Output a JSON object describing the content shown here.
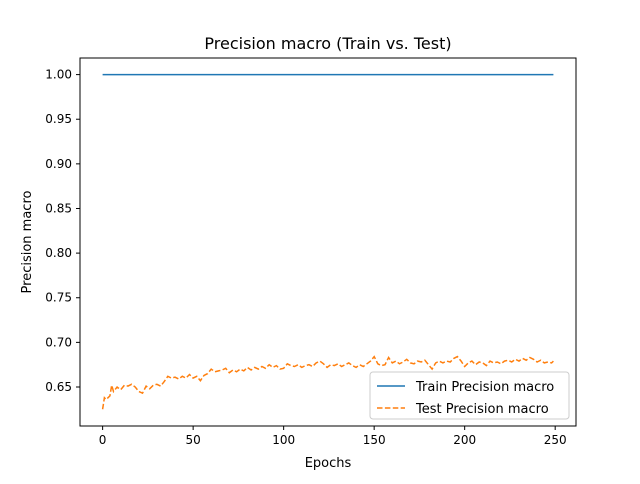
{
  "chart_data": {
    "type": "line",
    "title": "Precision macro (Train vs. Test)",
    "xlabel": "Epochs",
    "ylabel": "Precision macro",
    "xlim": [
      -12.5,
      261.5
    ],
    "ylim": [
      0.6063,
      1.0186
    ],
    "xticks": [
      0,
      50,
      100,
      150,
      200,
      250
    ],
    "yticks": [
      0.65,
      0.7,
      0.75,
      0.8,
      0.85,
      0.9,
      0.95,
      1.0
    ],
    "ytick_labels": [
      "0.65",
      "0.70",
      "0.75",
      "0.80",
      "0.85",
      "0.90",
      "0.95",
      "1.00"
    ],
    "grid": false,
    "legend_position": "lower right",
    "series": [
      {
        "name": "Train Precision macro",
        "color": "#1f77b4",
        "linestyle": "solid",
        "x": [
          0,
          249
        ],
        "y": [
          1.0,
          1.0
        ]
      },
      {
        "name": "Test Precision macro",
        "color": "#ff7f0e",
        "linestyle": "dashed",
        "x": [
          0,
          1,
          2,
          4,
          5,
          6,
          8,
          10,
          12,
          14,
          16,
          18,
          20,
          22,
          24,
          26,
          28,
          30,
          32,
          34,
          36,
          38,
          40,
          42,
          44,
          46,
          48,
          50,
          52,
          54,
          56,
          58,
          60,
          62,
          64,
          66,
          68,
          70,
          72,
          74,
          76,
          78,
          80,
          82,
          84,
          86,
          88,
          90,
          92,
          94,
          96,
          98,
          100,
          102,
          104,
          106,
          108,
          110,
          112,
          114,
          116,
          118,
          120,
          122,
          124,
          126,
          128,
          130,
          132,
          134,
          136,
          138,
          140,
          142,
          144,
          146,
          148,
          150,
          152,
          154,
          156,
          158,
          160,
          162,
          164,
          166,
          168,
          170,
          172,
          174,
          176,
          178,
          180,
          182,
          184,
          186,
          188,
          190,
          192,
          194,
          196,
          198,
          200,
          202,
          204,
          206,
          208,
          210,
          212,
          214,
          216,
          218,
          220,
          222,
          224,
          226,
          228,
          230,
          232,
          234,
          236,
          238,
          240,
          242,
          244,
          246,
          248,
          249
        ],
        "y": [
          0.625,
          0.638,
          0.636,
          0.64,
          0.652,
          0.645,
          0.65,
          0.647,
          0.652,
          0.651,
          0.653,
          0.65,
          0.645,
          0.643,
          0.651,
          0.648,
          0.652,
          0.653,
          0.651,
          0.656,
          0.662,
          0.66,
          0.661,
          0.659,
          0.662,
          0.66,
          0.664,
          0.66,
          0.662,
          0.657,
          0.663,
          0.665,
          0.67,
          0.667,
          0.668,
          0.669,
          0.671,
          0.666,
          0.669,
          0.667,
          0.67,
          0.668,
          0.672,
          0.669,
          0.672,
          0.67,
          0.673,
          0.671,
          0.675,
          0.672,
          0.674,
          0.67,
          0.671,
          0.676,
          0.674,
          0.673,
          0.675,
          0.672,
          0.674,
          0.675,
          0.673,
          0.677,
          0.679,
          0.676,
          0.672,
          0.675,
          0.674,
          0.676,
          0.673,
          0.675,
          0.677,
          0.674,
          0.672,
          0.675,
          0.673,
          0.676,
          0.679,
          0.684,
          0.676,
          0.674,
          0.675,
          0.683,
          0.677,
          0.679,
          0.676,
          0.678,
          0.681,
          0.677,
          0.676,
          0.679,
          0.678,
          0.68,
          0.675,
          0.67,
          0.677,
          0.679,
          0.677,
          0.679,
          0.678,
          0.682,
          0.684,
          0.679,
          0.673,
          0.677,
          0.679,
          0.675,
          0.678,
          0.677,
          0.674,
          0.679,
          0.677,
          0.678,
          0.676,
          0.679,
          0.68,
          0.678,
          0.681,
          0.679,
          0.682,
          0.68,
          0.683,
          0.681,
          0.678,
          0.68,
          0.677,
          0.678,
          0.677,
          0.679
        ]
      }
    ]
  }
}
